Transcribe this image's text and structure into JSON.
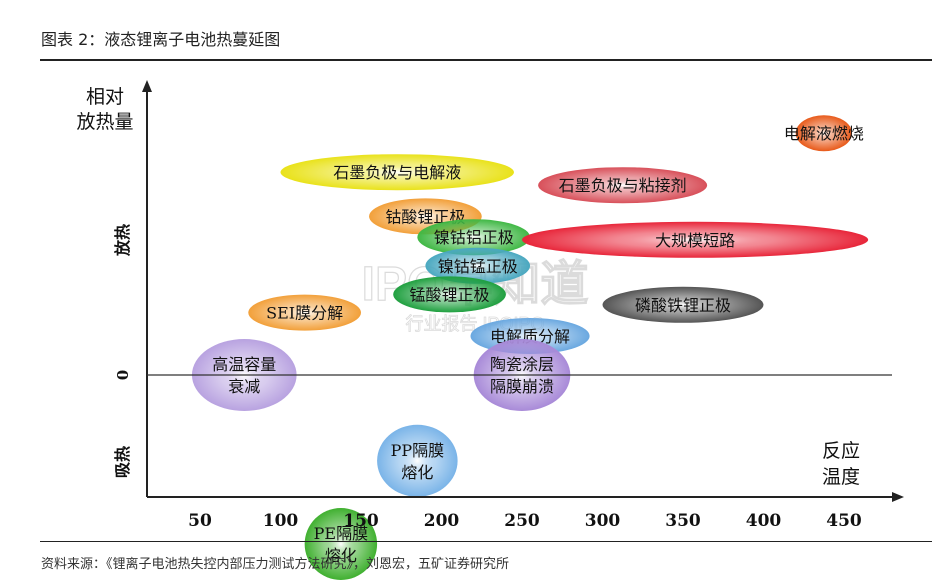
{
  "figure_title": "图表 2：液态锂离子电池热蔓延图",
  "source": "资料来源：《锂离子电池热失控内部压力测试方法研究》，刘恩宏，五矿证券研究所",
  "watermark": [
    "IPO早知道",
    "行业报告 IPOIPO"
  ],
  "chart_data": {
    "type": "bubble-timeline",
    "y_axis_label": [
      "相对",
      "放热量"
    ],
    "x_axis_label": [
      "反应",
      "温度"
    ],
    "y_zone_labels": {
      "exo": "放热",
      "zero": "0",
      "endo": "吸热"
    },
    "x_ticks": [
      50,
      100,
      150,
      200,
      250,
      300,
      350,
      400,
      450
    ],
    "events": [
      {
        "label": [
          "电解液燃烧"
        ],
        "x_start": 420,
        "x_end": 455,
        "level": 0.93,
        "color": "#e85a1a"
      },
      {
        "label": [
          "石墨负极与电解液"
        ],
        "x_start": 100,
        "x_end": 245,
        "level": 0.78,
        "color": "#e9e21a"
      },
      {
        "label": [
          "石墨负极与粘接剂"
        ],
        "x_start": 260,
        "x_end": 365,
        "level": 0.73,
        "color": "#d8505a"
      },
      {
        "label": [
          "钴酸锂正极"
        ],
        "x_start": 155,
        "x_end": 225,
        "level": 0.61,
        "color": "#f2a03a"
      },
      {
        "label": [
          "镍钴铝正极"
        ],
        "x_start": 185,
        "x_end": 255,
        "level": 0.53,
        "color": "#40b845"
      },
      {
        "label": [
          "大规模短路"
        ],
        "x_start": 250,
        "x_end": 465,
        "level": 0.52,
        "color": "#e8263a"
      },
      {
        "label": [
          "镍钴锰正极"
        ],
        "x_start": 190,
        "x_end": 255,
        "level": 0.42,
        "color": "#4aa8c0"
      },
      {
        "label": [
          "锰酸锂正极"
        ],
        "x_start": 170,
        "x_end": 240,
        "level": 0.31,
        "color": "#20a040"
      },
      {
        "label": [
          "磷酸铁锂正极"
        ],
        "x_start": 300,
        "x_end": 400,
        "level": 0.27,
        "color": "#555555"
      },
      {
        "label": [
          "SEI膜分解"
        ],
        "x_start": 80,
        "x_end": 150,
        "level": 0.24,
        "color": "#f2a03a"
      },
      {
        "label": [
          "电解质分解"
        ],
        "x_start": 218,
        "x_end": 292,
        "level": 0.15,
        "color": "#6aa8e0"
      },
      {
        "label": [
          "陶瓷涂层",
          "隔膜崩溃"
        ],
        "x_start": 220,
        "x_end": 280,
        "level": 0.0,
        "color": "#a88ad8"
      },
      {
        "label": [
          "高温容量",
          "衰减"
        ],
        "x_start": 45,
        "x_end": 110,
        "level": 0.0,
        "color": "#b8a2e0"
      },
      {
        "label": [
          "PP隔膜",
          "熔化"
        ],
        "x_start": 160,
        "x_end": 210,
        "level": -0.33,
        "color": "#7ab4e8"
      },
      {
        "label": [
          "PE隔膜",
          "熔化"
        ],
        "x_start": 115,
        "x_end": 160,
        "level": -0.65,
        "color": "#40b030"
      }
    ]
  }
}
